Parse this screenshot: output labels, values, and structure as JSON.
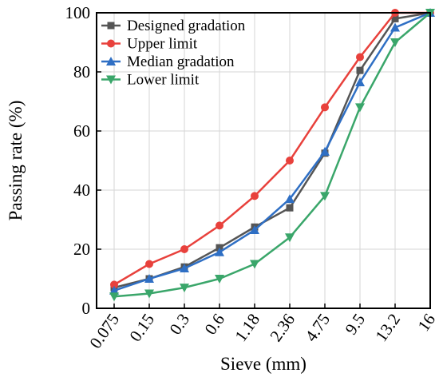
{
  "chart_data": {
    "type": "line",
    "xlabel": "Sieve (mm)",
    "ylabel": "Passing rate (%)",
    "categories": [
      "0.075",
      "0.15",
      "0.3",
      "0.6",
      "1.18",
      "2.36",
      "4.75",
      "9.5",
      "13.2",
      "16"
    ],
    "ylim": [
      0,
      100
    ],
    "yticks": [
      0,
      20,
      40,
      60,
      80,
      100
    ],
    "grid": true,
    "legend_position": "top-left",
    "series": [
      {
        "name": "Designed gradation",
        "marker": "square",
        "color": "#555555",
        "values": [
          7.0,
          10.0,
          14.0,
          20.5,
          27.5,
          34.0,
          52.5,
          80.5,
          98.0,
          100
        ]
      },
      {
        "name": "Upper limit",
        "marker": "circle",
        "color": "#e8413c",
        "values": [
          8.0,
          15.0,
          20.0,
          28.0,
          38.0,
          50.0,
          68.0,
          85.0,
          100,
          100
        ]
      },
      {
        "name": "Median gradation",
        "marker": "triangle-up",
        "color": "#2f6fc4",
        "values": [
          6.0,
          10.0,
          13.5,
          19.0,
          26.5,
          37.0,
          53.0,
          76.5,
          95.0,
          100
        ]
      },
      {
        "name": "Lower limit",
        "marker": "triangle-down",
        "color": "#3aa66a",
        "values": [
          4.0,
          5.0,
          7.0,
          10.0,
          15.0,
          24.0,
          38.0,
          68.0,
          90.0,
          100
        ]
      }
    ]
  }
}
